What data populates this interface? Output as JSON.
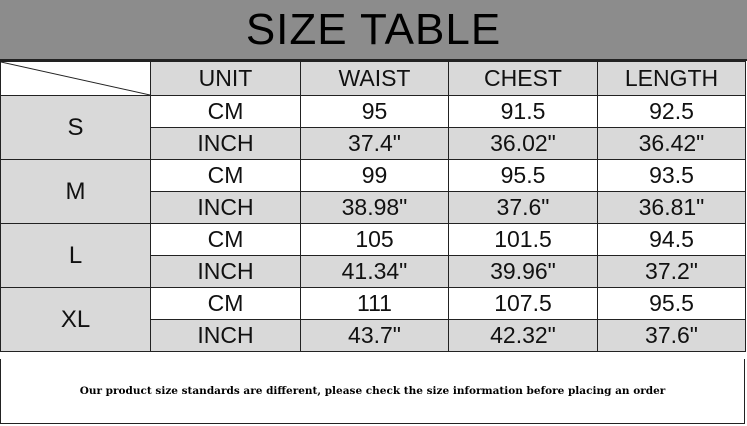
{
  "title": "SIZE TABLE",
  "headers": [
    "UNIT",
    "WAIST",
    "CHEST",
    "LENGTH"
  ],
  "rows": [
    {
      "size": "S",
      "cm": {
        "unit": "CM",
        "waist": "95",
        "chest": "91.5",
        "length": "92.5"
      },
      "inch": {
        "unit": "INCH",
        "waist": "37.4\"",
        "chest": "36.02\"",
        "length": "36.42\""
      }
    },
    {
      "size": "M",
      "cm": {
        "unit": "CM",
        "waist": "99",
        "chest": "95.5",
        "length": "93.5"
      },
      "inch": {
        "unit": "INCH",
        "waist": "38.98\"",
        "chest": "37.6\"",
        "length": "36.81\""
      }
    },
    {
      "size": "L",
      "cm": {
        "unit": "CM",
        "waist": "105",
        "chest": "101.5",
        "length": "94.5"
      },
      "inch": {
        "unit": "INCH",
        "waist": "41.34\"",
        "chest": "39.96\"",
        "length": "37.2\""
      }
    },
    {
      "size": "XL",
      "cm": {
        "unit": "CM",
        "waist": "111",
        "chest": "107.5",
        "length": "95.5"
      },
      "inch": {
        "unit": "INCH",
        "waist": "43.7\"",
        "chest": "42.32\"",
        "length": "37.6\""
      }
    }
  ],
  "footer": "Our product size standards are different, please check the size information before placing an order",
  "colors": {
    "title_bg": "#8c8c8c",
    "shade": "#d9d9d9"
  }
}
